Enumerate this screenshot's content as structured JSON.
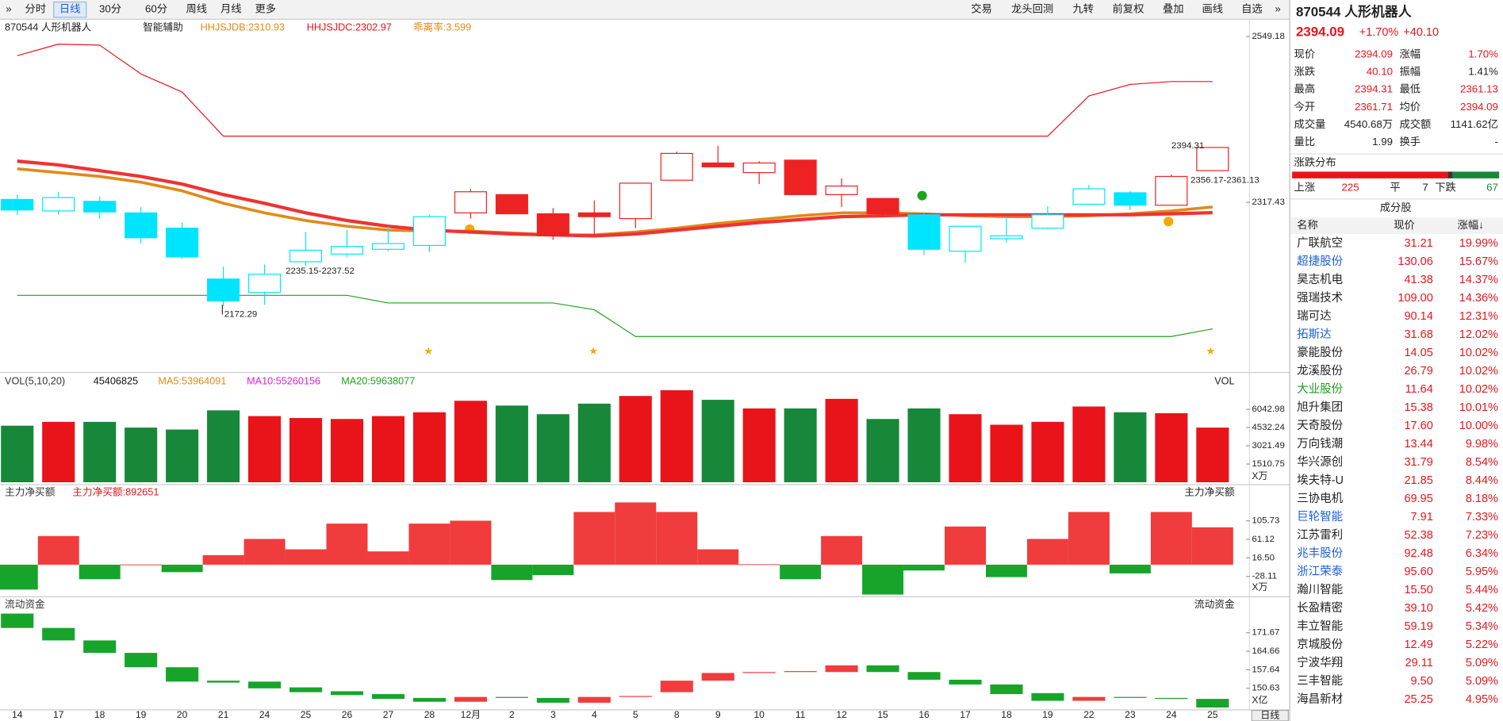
{
  "toolbar": {
    "left": [
      "分时",
      "日线",
      "30分",
      "60分",
      "周线",
      "月线",
      "更多"
    ],
    "active_index": 1,
    "right": [
      "交易",
      "龙头回测",
      "九转",
      "前复权",
      "叠加",
      "画线",
      "自选"
    ]
  },
  "chart": {
    "header": [
      {
        "text": "870544 人形机器人",
        "color": "#222222"
      },
      {
        "text": "智能辅助",
        "color": "#222222"
      },
      {
        "text": "HHJSJDB:2310.93",
        "color": "#e08a1a"
      },
      {
        "text": "HHJSJDC:2302.97",
        "color": "#e8141a"
      },
      {
        "text": "乖离率:3.599",
        "color": "#e08a1a"
      }
    ],
    "categories": [
      "14",
      "17",
      "18",
      "19",
      "20",
      "21",
      "24",
      "25",
      "26",
      "27",
      "28",
      "12月",
      "2",
      "3",
      "4",
      "5",
      "8",
      "9",
      "10",
      "11",
      "12",
      "15",
      "16",
      "17",
      "18",
      "19",
      "22",
      "23",
      "24",
      "25"
    ],
    "open": [
      2321.5,
      2305.4,
      2318.8,
      2302.7,
      2281.3,
      2210.3,
      2191.5,
      2234.4,
      2245.1,
      2251.8,
      2257.2,
      2302.7,
      2328.2,
      2301.4,
      2302.7,
      2294.7,
      2348.3,
      2372.4,
      2359.0,
      2376.4,
      2328.2,
      2322.8,
      2300.0,
      2249.1,
      2266.5,
      2281.3,
      2314.8,
      2330.8,
      2313.4,
      2361.71
    ],
    "high": [
      2328.2,
      2332.2,
      2325.5,
      2310.7,
      2289.3,
      2227.7,
      2230.4,
      2275.9,
      2278.6,
      2284.0,
      2300.0,
      2336.2,
      2328.2,
      2309.4,
      2320.1,
      2344.2,
      2388.4,
      2396.5,
      2375.0,
      2376.4,
      2350.9,
      2322.8,
      2302.7,
      2284.0,
      2297.4,
      2312.1,
      2341.6,
      2333.5,
      2356.3,
      2394.31
    ],
    "low": [
      2300.0,
      2300.0,
      2294.7,
      2259.8,
      2238.4,
      2172.29,
      2174.1,
      2229.0,
      2241.1,
      2249.1,
      2247.8,
      2294.7,
      2301.4,
      2265.2,
      2273.2,
      2281.3,
      2348.3,
      2367.0,
      2342.9,
      2328.2,
      2310.7,
      2297.4,
      2243.8,
      2233.0,
      2261.2,
      2279.9,
      2314.8,
      2306.7,
      2313.4,
      2361.13
    ],
    "close": [
      2306.7,
      2324.1,
      2304.0,
      2267.9,
      2241.1,
      2179.5,
      2217.0,
      2250.5,
      2255.8,
      2259.8,
      2297.4,
      2332.2,
      2301.4,
      2270.6,
      2297.4,
      2344.2,
      2385.8,
      2367.0,
      2372.4,
      2328.2,
      2340.2,
      2301.4,
      2251.8,
      2284.0,
      2270.6,
      2300.0,
      2336.2,
      2313.4,
      2353.6,
      2394.09
    ],
    "colors": [
      "#00e5ff",
      "#00e5ff",
      "#00e5ff",
      "#00e5ff",
      "#00e5ff",
      "#00e5ff",
      "#00e5ff",
      "#00e5ff",
      "#00e5ff",
      "#00e5ff",
      "#00e5ff",
      "#ee2222",
      "#ee2222",
      "#ee2222",
      "#ee2222",
      "#ee2222",
      "#ee2222",
      "#ee2222",
      "#ee2222",
      "#ee2222",
      "#ee2222",
      "#ee2222",
      "#00e5ff",
      "#00e5ff",
      "#00e5ff",
      "#00e5ff",
      "#00e5ff",
      "#00e5ff",
      "#ee2222",
      "#ee2222"
    ],
    "lines": [
      {
        "color": "#e8141a",
        "width": 1,
        "values": [
          2522.4,
          2538.5,
          2537.1,
          2496.9,
          2471.5,
          2409.9,
          2409.9,
          2409.9,
          2409.9,
          2409.9,
          2409.9,
          2409.9,
          2409.9,
          2409.9,
          2409.9,
          2409.9,
          2409.9,
          2409.9,
          2409.9,
          2409.9,
          2409.9,
          2409.9,
          2409.9,
          2409.9,
          2409.9,
          2409.9,
          2466.1,
          2482.2,
          2486.2,
          2486.2
        ]
      },
      {
        "color": "#1aa51a",
        "width": 1,
        "values": [
          2187.5,
          2187.5,
          2187.5,
          2187.5,
          2187.5,
          2187.5,
          2187.5,
          2187.5,
          2187.5,
          2176.8,
          2176.8,
          2176.8,
          2176.8,
          2176.8,
          2167.4,
          2129.9,
          2129.9,
          2129.9,
          2129.9,
          2129.9,
          2129.9,
          2129.9,
          2129.9,
          2129.9,
          2129.9,
          2129.9,
          2129.9,
          2129.9,
          2129.9,
          2140.6
        ]
      },
      {
        "color": "#e08a1a",
        "width": 3,
        "values": [
          2364.3,
          2359.0,
          2353.6,
          2345.6,
          2333.5,
          2316.1,
          2302.7,
          2292.0,
          2284.0,
          2278.6,
          2277.2,
          2277.2,
          2274.6,
          2271.9,
          2271.9,
          2275.9,
          2281.3,
          2288.0,
          2293.3,
          2298.7,
          2302.7,
          2302.7,
          2301.4,
          2298.7,
          2297.4,
          2297.4,
          2298.7,
          2301.4,
          2305.4,
          2310.93
        ]
      },
      {
        "color": "#ee3333",
        "width": 3.5,
        "values": [
          2375.0,
          2369.7,
          2361.7,
          2353.6,
          2342.9,
          2328.2,
          2316.1,
          2302.7,
          2292.0,
          2284.0,
          2278.6,
          2275.9,
          2273.2,
          2271.9,
          2270.6,
          2273.2,
          2278.6,
          2284.0,
          2289.3,
          2293.3,
          2297.4,
          2298.7,
          2300.0,
          2300.0,
          2300.0,
          2300.0,
          2300.0,
          2300.0,
          2301.4,
          2302.97
        ]
      }
    ],
    "ylim": [
      2084.33,
      2573.29
    ],
    "yticks": [
      2549.18,
      2317.43
    ],
    "annotations": [
      "2235.15-2237.52",
      "2172.29",
      "2394.31",
      "2356.17-2361.13"
    ]
  },
  "volume": {
    "header": [
      {
        "text": "VOL(5,10,20)",
        "color": "#333333"
      },
      {
        "text": "45406825",
        "color": "#111111"
      },
      {
        "text": "MA5:53964091",
        "color": "#e08a1a"
      },
      {
        "text": "MA10:55260156",
        "color": "#e020e0"
      },
      {
        "text": "MA20:59638077",
        "color": "#1aa51a"
      }
    ],
    "right_title": "VOL",
    "values": [
      4690,
      5008,
      5008,
      4532,
      4372,
      5962,
      5485,
      5326,
      5247,
      5485,
      5803,
      6757,
      6360,
      5644,
      6519,
      7155,
      7632,
      6837,
      6121,
      6121,
      6916,
      5247,
      6121,
      5644,
      4770,
      5008,
      6280,
      5803,
      5724,
      4532
    ],
    "colors": [
      "#17883a",
      "#e8141a",
      "#17883a",
      "#17883a",
      "#17883a",
      "#17883a",
      "#e8141a",
      "#e8141a",
      "#e8141a",
      "#e8141a",
      "#e8141a",
      "#e8141a",
      "#17883a",
      "#17883a",
      "#17883a",
      "#e8141a",
      "#e8141a",
      "#17883a",
      "#e8141a",
      "#17883a",
      "#e8141a",
      "#17883a",
      "#17883a",
      "#e8141a",
      "#e8141a",
      "#e8141a",
      "#e8141a",
      "#17883a",
      "#e8141a",
      "#e8141a"
    ],
    "ylim": [
      0,
      7791
    ],
    "yticks": [
      6042.98,
      4532.24,
      3021.49,
      1510.75
    ],
    "unit": "X万"
  },
  "flow": {
    "header": [
      {
        "text": "主力净买额",
        "color": "#333333"
      },
      {
        "text": "主力净买额:892651",
        "color": "#e8141a"
      }
    ],
    "right_title": "主力净买额",
    "values": [
      -60,
      69,
      -35,
      0.5,
      -18,
      23,
      62,
      37,
      99,
      32,
      99,
      106,
      -37,
      -25,
      127,
      150,
      127,
      37,
      1,
      -35,
      69,
      -72,
      -14,
      92,
      -30,
      62,
      127,
      -21,
      127,
      90
    ],
    "up_color": "#f03c3c",
    "down_color": "#16a52a",
    "ylim": [
      -76.23,
      159.39
    ],
    "yticks": [
      105.73,
      61.12,
      {
        "value": 16.5,
        "label": "16.50"
      },
      -28.11
    ],
    "unit": "X万"
  },
  "liquidity": {
    "header": [
      {
        "text": "流动资金",
        "color": "#333333"
      }
    ],
    "right_title": "流动资金",
    "start": [
      178.93,
      173.49,
      168.76,
      164.04,
      158.6,
      153.51,
      153.15,
      150.97,
      149.51,
      148.42,
      146.97,
      145.52,
      147.34,
      146.97,
      145.16,
      147.34,
      149.15,
      153.51,
      156.42,
      156.78,
      156.78,
      159.32,
      156.78,
      153.87,
      152.06,
      148.79,
      145.88,
      147.34,
      146.97,
      146.61
    ],
    "end": [
      173.49,
      168.76,
      164.04,
      158.6,
      153.15,
      152.78,
      150.6,
      149.15,
      148.06,
      146.61,
      145.52,
      147.34,
      146.97,
      145.16,
      147.34,
      147.7,
      153.51,
      156.42,
      156.78,
      157.14,
      159.32,
      156.78,
      153.87,
      152.06,
      148.42,
      145.88,
      147.34,
      146.97,
      146.61,
      143.34
    ],
    "up_color": "#f03c3c",
    "down_color": "#16a52a",
    "ylim": [
      142.61,
      179.66
    ],
    "yticks": [
      171.67,
      164.66,
      157.64,
      150.63
    ],
    "unit": "X亿",
    "period": "日线"
  },
  "quote": {
    "title": "870544 人形机器人",
    "price": "2394.09",
    "change_pct": "+1.70%",
    "change": "+40.10",
    "fields": [
      [
        {
          "label": "现价",
          "value": "2394.09",
          "color": "#e8141a"
        },
        {
          "label": "涨幅",
          "value": "1.70%",
          "color": "#e8141a"
        }
      ],
      [
        {
          "label": "涨跌",
          "value": "40.10",
          "color": "#e8141a"
        },
        {
          "label": "振幅",
          "value": "1.41%",
          "color": "#222222"
        }
      ],
      [
        {
          "label": "最高",
          "value": "2394.31",
          "color": "#e8141a"
        },
        {
          "label": "最低",
          "value": "2361.13",
          "color": "#e8141a"
        }
      ],
      [
        {
          "label": "今开",
          "value": "2361.71",
          "color": "#e8141a"
        },
        {
          "label": "均价",
          "value": "2394.09",
          "color": "#e8141a"
        }
      ],
      [
        {
          "label": "成交量",
          "value": "4540.68万",
          "color": "#222222"
        },
        {
          "label": "成交额",
          "value": "1141.62亿",
          "color": "#222222"
        }
      ],
      [
        {
          "label": "量比",
          "value": "1.99",
          "color": "#222222"
        },
        {
          "label": "换手",
          "value": "-",
          "color": "#222222"
        }
      ]
    ],
    "distribution_title": "涨跌分布",
    "up_label": "上涨",
    "up": 225,
    "flat_label": "平",
    "flat": 7,
    "down_label": "下跌",
    "down": 67
  },
  "constituents": {
    "title": "成分股",
    "headers": [
      "名称",
      "现价",
      "涨幅↓"
    ],
    "rows": [
      [
        "广联航空",
        "31.21",
        "19.99%",
        "#222222"
      ],
      [
        "超捷股份",
        "130.06",
        "15.67%",
        "#1e5fd6"
      ],
      [
        "昊志机电",
        "41.38",
        "14.37%",
        "#222222"
      ],
      [
        "强瑞技术",
        "109.00",
        "14.36%",
        "#222222"
      ],
      [
        "瑞可达",
        "90.14",
        "12.31%",
        "#222222"
      ],
      [
        "拓斯达",
        "31.68",
        "12.02%",
        "#1e5fd6"
      ],
      [
        "豪能股份",
        "14.05",
        "10.02%",
        "#222222"
      ],
      [
        "龙溪股份",
        "26.79",
        "10.02%",
        "#222222"
      ],
      [
        "大业股份",
        "11.64",
        "10.02%",
        "#1ea01e"
      ],
      [
        "旭升集团",
        "15.38",
        "10.01%",
        "#222222"
      ],
      [
        "天奇股份",
        "17.60",
        "10.00%",
        "#222222"
      ],
      [
        "万向钱潮",
        "13.44",
        "9.98%",
        "#222222"
      ],
      [
        "华兴源创",
        "31.79",
        "8.54%",
        "#222222"
      ],
      [
        "埃夫特-U",
        "21.85",
        "8.44%",
        "#222222"
      ],
      [
        "三协电机",
        "69.95",
        "8.18%",
        "#222222"
      ],
      [
        "巨轮智能",
        "7.91",
        "7.33%",
        "#1e5fd6"
      ],
      [
        "江苏雷利",
        "52.38",
        "7.23%",
        "#222222"
      ],
      [
        "兆丰股份",
        "92.48",
        "6.34%",
        "#1e5fd6"
      ],
      [
        "浙江荣泰",
        "95.60",
        "5.95%",
        "#1e5fd6"
      ],
      [
        "瀚川智能",
        "15.50",
        "5.44%",
        "#222222"
      ],
      [
        "长盈精密",
        "39.10",
        "5.42%",
        "#222222"
      ],
      [
        "丰立智能",
        "59.19",
        "5.34%",
        "#222222"
      ],
      [
        "京城股份",
        "12.49",
        "5.22%",
        "#222222"
      ],
      [
        "宁波华翔",
        "29.11",
        "5.09%",
        "#222222"
      ],
      [
        "三丰智能",
        "9.50",
        "5.09%",
        "#222222"
      ],
      [
        "海昌新材",
        "25.25",
        "4.95%",
        "#222222"
      ]
    ]
  }
}
